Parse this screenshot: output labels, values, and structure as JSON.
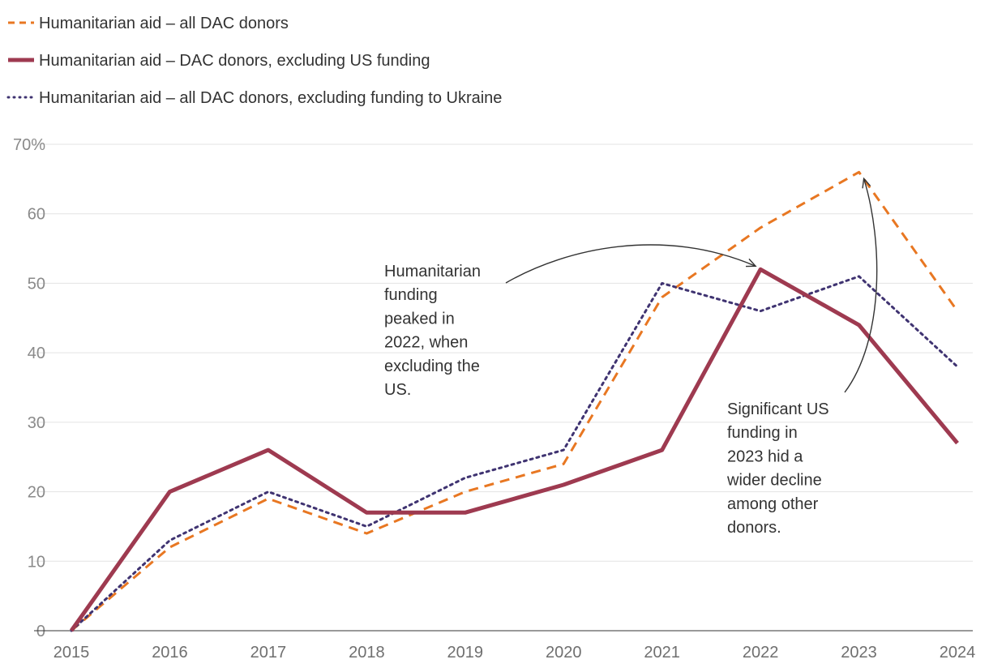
{
  "chart_data": {
    "type": "line",
    "title": "",
    "xlabel": "",
    "ylabel": "",
    "x": [
      "2015",
      "2016",
      "2017",
      "2018",
      "2019",
      "2020",
      "2021",
      "2022",
      "2023",
      "2024"
    ],
    "ylim": [
      0,
      70
    ],
    "yticks": [
      0,
      10,
      20,
      30,
      40,
      50,
      60,
      70
    ],
    "ytick_labels": [
      "0",
      "10",
      "20",
      "30",
      "40",
      "50",
      "60",
      "70%"
    ],
    "grid": true,
    "legend_position": "top-left",
    "series": [
      {
        "name": "Humanitarian aid – all DAC donors",
        "color": "#e87722",
        "style": "dashed",
        "values": [
          0,
          12,
          19,
          14,
          20,
          24,
          48,
          58,
          66,
          46
        ]
      },
      {
        "name": "Humanitarian aid – DAC donors, excluding US funding",
        "color": "#9e3a50",
        "style": "solid",
        "values": [
          0,
          20,
          26,
          17,
          17,
          21,
          26,
          52,
          44,
          27
        ]
      },
      {
        "name": "Humanitarian aid – all DAC donors, excluding funding to Ukraine",
        "color": "#3f3371",
        "style": "dotted",
        "values": [
          0,
          13,
          20,
          15,
          22,
          26,
          50,
          46,
          51,
          38
        ]
      }
    ],
    "annotations": [
      {
        "lines": [
          "Humanitarian",
          "funding",
          "peaked in",
          "2022, when",
          "excluding the",
          "US."
        ],
        "target_x": "2022",
        "target_y": 52
      },
      {
        "lines": [
          "Significant US",
          "funding in",
          "2023 hid a",
          "wider decline",
          "among other",
          "donors."
        ],
        "target_x": "2023",
        "target_y": 66
      }
    ]
  }
}
